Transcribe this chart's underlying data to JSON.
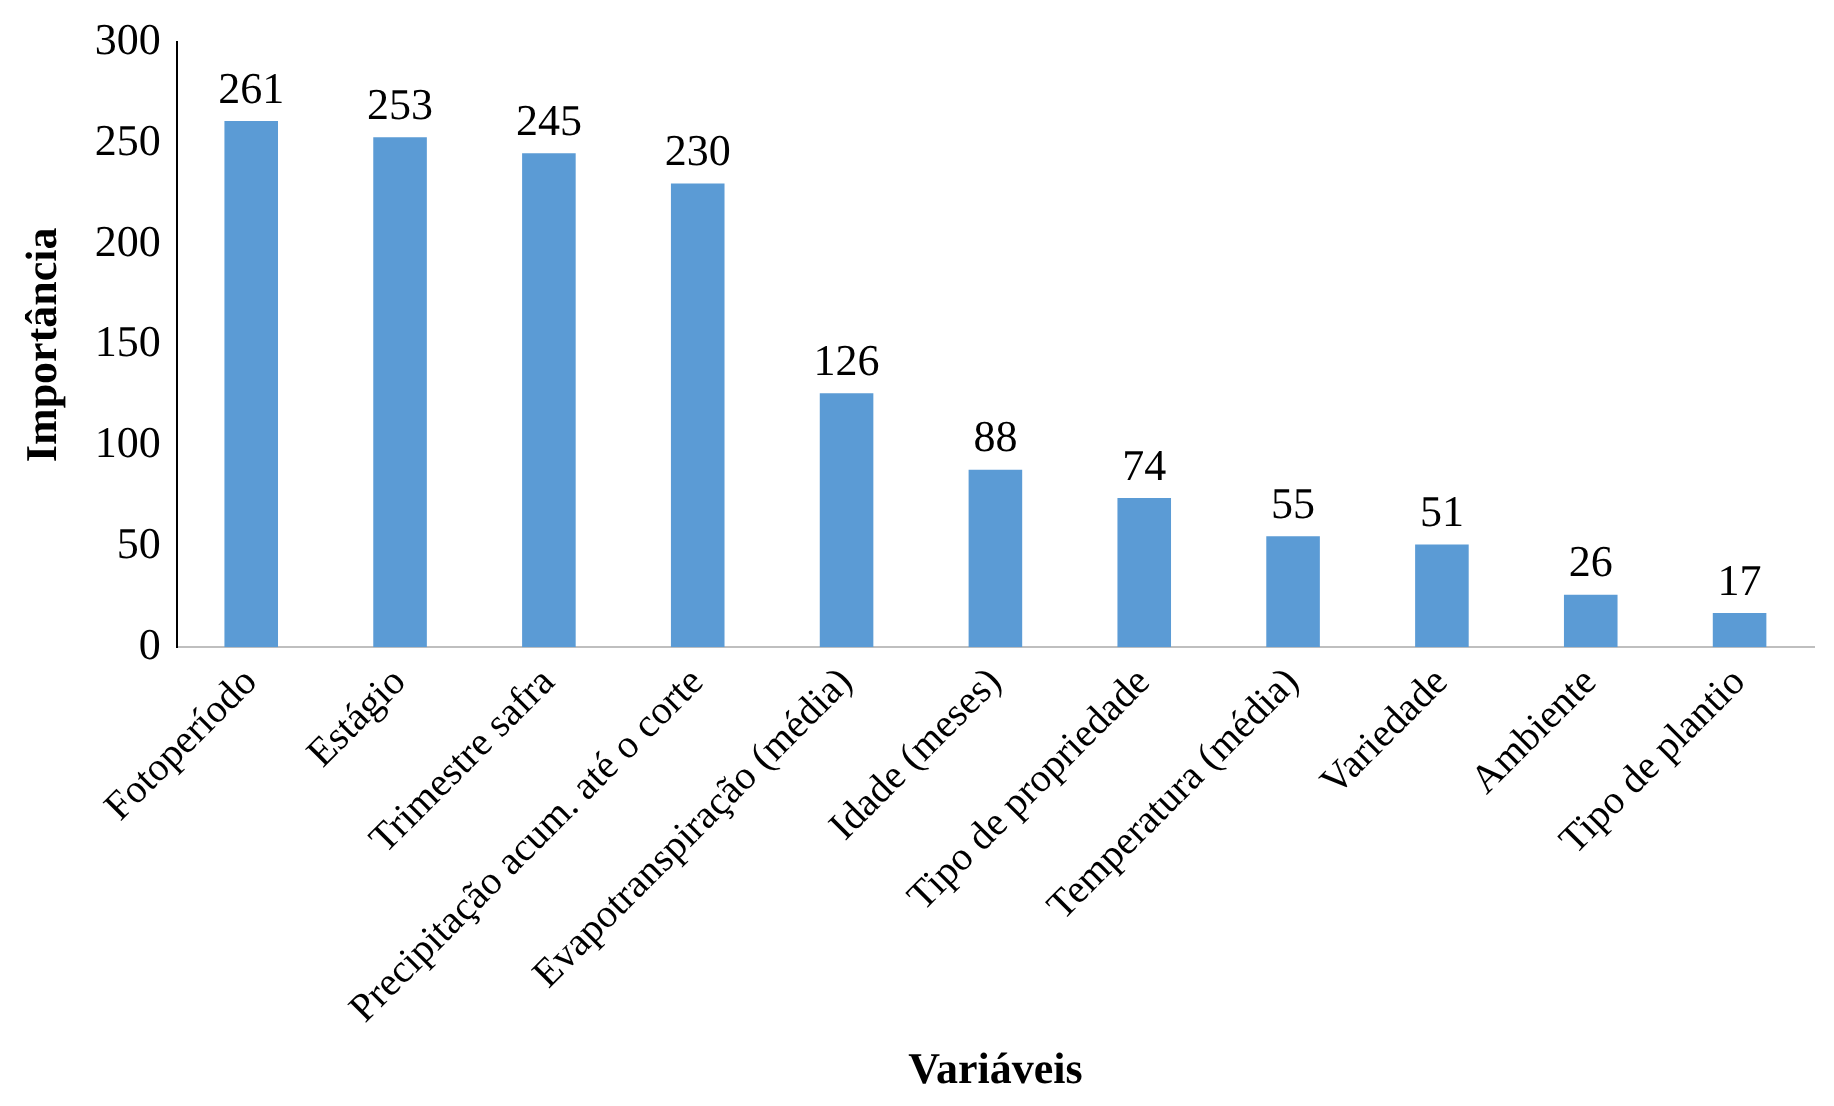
{
  "chart_data": {
    "type": "bar",
    "xlabel": "Variáveis",
    "ylabel": "Importância",
    "categories": [
      "Fotoperíodo",
      "Estágio",
      "Trimestre safra",
      "Precipitação acum. até o corte",
      "Evapotranspiração (média)",
      "Idade (meses)",
      "Tipo de propriedade",
      "Temperatura (média)",
      "Variedade",
      "Ambiente",
      "Tipo de plantio"
    ],
    "values": [
      261,
      253,
      245,
      230,
      126,
      88,
      74,
      55,
      51,
      26,
      17
    ],
    "color": "#5b9bd5",
    "ylim": [
      0,
      300
    ],
    "yticks": [
      0,
      50,
      100,
      150,
      200,
      250,
      300
    ],
    "grid": false,
    "legend": false,
    "data_labels": true
  }
}
